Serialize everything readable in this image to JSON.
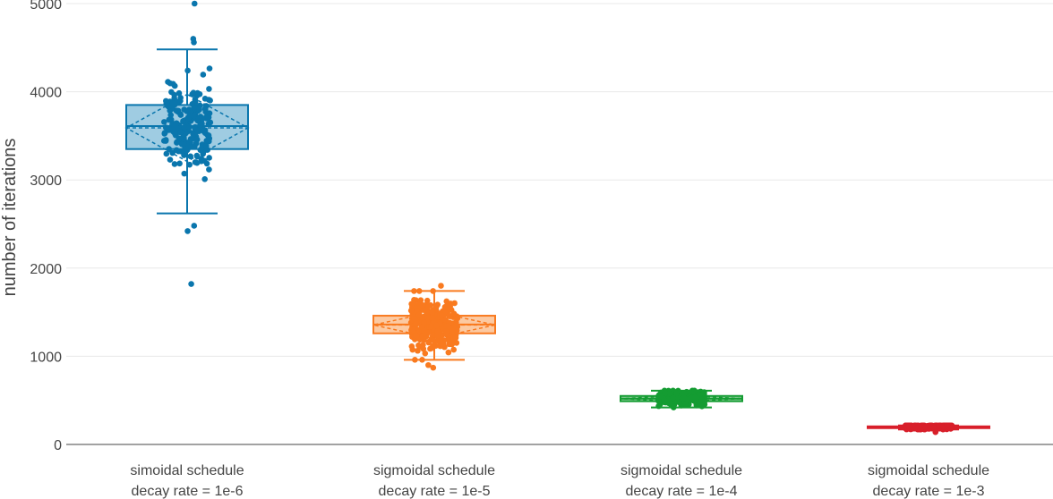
{
  "chart_data": {
    "type": "box",
    "title": "",
    "xlabel": "",
    "ylabel": "number of iterations",
    "ylim": [
      0,
      5000
    ],
    "yticks": [
      0,
      1000,
      2000,
      3000,
      4000,
      5000
    ],
    "grid": true,
    "legend": "none",
    "series": [
      {
        "category_lines": [
          "simoidal schedule",
          "decay rate = 1e-6"
        ],
        "color": "#0a76ad",
        "fill": "#8ec3dd",
        "whisker_low": 2620,
        "q1": 3350,
        "median": 3610,
        "q3": 3850,
        "whisker_high": 4480,
        "mean": 3590,
        "sd": 380,
        "outliers": [
          5000,
          4600,
          4560,
          1820,
          2420,
          2480
        ],
        "point_spread": 330,
        "points_count": 230
      },
      {
        "category_lines": [
          "sigmoidal schedule",
          "decay rate = 1e-5"
        ],
        "color": "#f97a1f",
        "fill": "#fcbf91",
        "whisker_low": 960,
        "q1": 1260,
        "median": 1360,
        "q3": 1460,
        "whisker_high": 1740,
        "mean": 1355,
        "sd": 150,
        "outliers": [
          1800,
          870,
          900
        ],
        "point_spread": 180,
        "points_count": 300
      },
      {
        "category_lines": [
          "sigmoidal schedule",
          "decay rate = 1e-4"
        ],
        "color": "#149c32",
        "fill": "#83c991",
        "whisker_low": 420,
        "q1": 490,
        "median": 520,
        "q3": 550,
        "whisker_high": 610,
        "mean": 520,
        "sd": 35,
        "outliers": [],
        "point_spread": 50,
        "points_count": 300
      },
      {
        "category_lines": [
          "sigmoidal schedule",
          "decay rate = 1e-3"
        ],
        "color": "#d81f2a",
        "fill": "#ec8f94",
        "whisker_low": 170,
        "q1": 185,
        "median": 200,
        "q3": 205,
        "whisker_high": 215,
        "mean": 198,
        "sd": 15,
        "outliers": [
          140
        ],
        "point_spread": 20,
        "points_count": 250
      }
    ]
  }
}
